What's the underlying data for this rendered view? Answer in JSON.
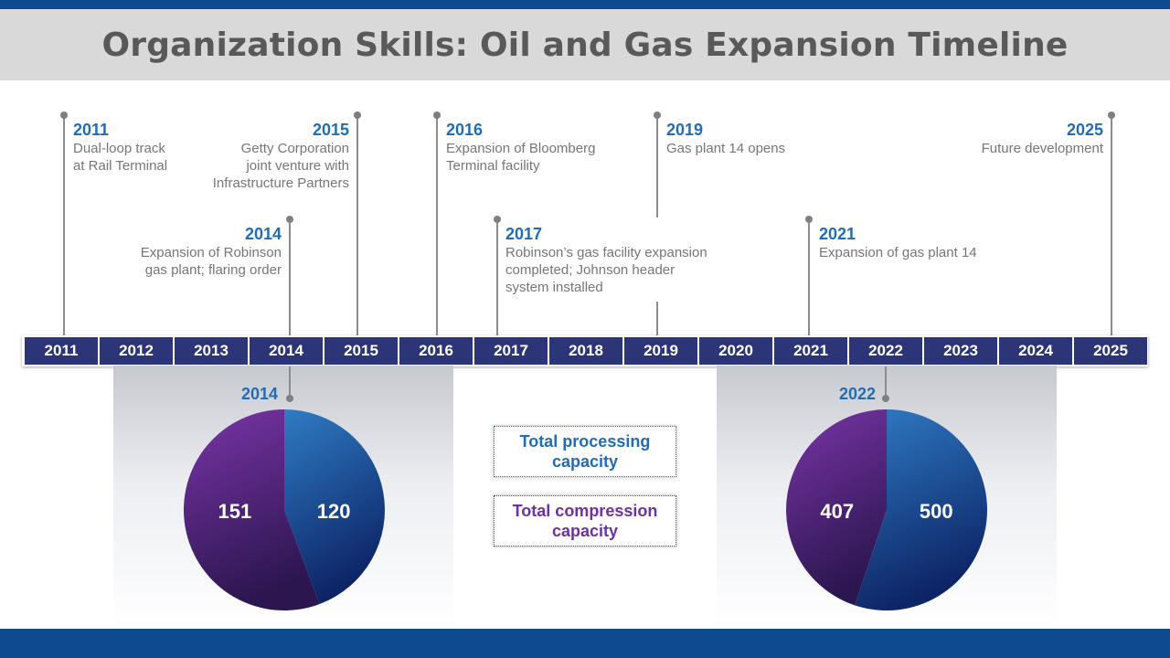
{
  "title": "Organization Skills: Oil and Gas Expansion Timeline",
  "timeline": {
    "years": [
      "2011",
      "2012",
      "2013",
      "2014",
      "2015",
      "2016",
      "2017",
      "2018",
      "2019",
      "2020",
      "2021",
      "2022",
      "2023",
      "2024",
      "2025"
    ]
  },
  "events": [
    {
      "year": "2011",
      "desc": [
        "Dual-loop track",
        "at Rail Terminal"
      ]
    },
    {
      "year": "2014",
      "desc": [
        "Expansion of Robinson",
        "gas plant; flaring order"
      ]
    },
    {
      "year": "2015",
      "desc": [
        "Getty Corporation",
        "joint venture with",
        "Infrastructure Partners"
      ]
    },
    {
      "year": "2016",
      "desc": [
        "Expansion of Bloomberg",
        "Terminal facility"
      ]
    },
    {
      "year": "2017",
      "desc": [
        "Robinson’s gas facility expansion",
        "completed; Johnson header",
        "system installed"
      ]
    },
    {
      "year": "2019",
      "desc": [
        "Gas plant 14 opens"
      ]
    },
    {
      "year": "2021",
      "desc": [
        "Expansion of gas plant 14"
      ]
    },
    {
      "year": "2025",
      "desc": [
        "Future development"
      ]
    }
  ],
  "legend": {
    "processing": [
      "Total processing",
      "capacity"
    ],
    "compression": [
      "Total compression",
      "capacity"
    ]
  },
  "colors": {
    "accent_blue": "#0d4a8f",
    "year_text": "#1f6eb5",
    "timeline_cell": "#2c3578",
    "processing": "#1f6eb5",
    "compression": "#7030a0"
  },
  "chart_data": [
    {
      "type": "pie",
      "title": "2014",
      "series": [
        {
          "name": "Total processing capacity",
          "value": 120
        },
        {
          "name": "Total compression capacity",
          "value": 151
        }
      ]
    },
    {
      "type": "pie",
      "title": "2022",
      "series": [
        {
          "name": "Total processing capacity",
          "value": 500
        },
        {
          "name": "Total compression capacity",
          "value": 407
        }
      ]
    }
  ]
}
